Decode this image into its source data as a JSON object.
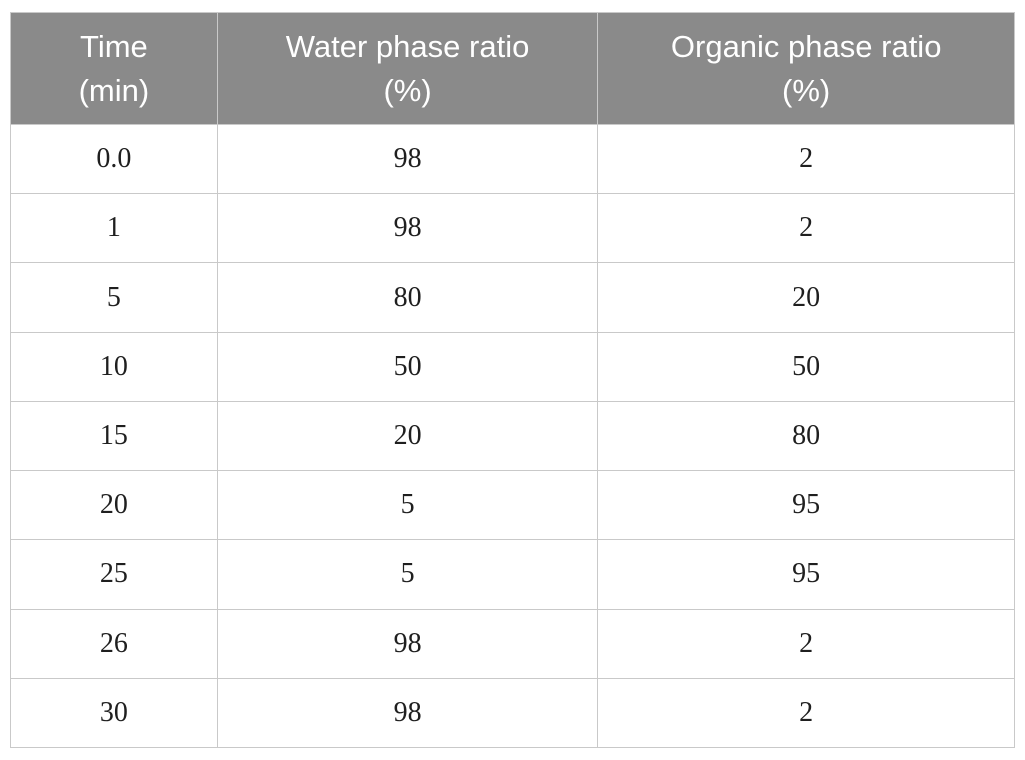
{
  "chart_data": {
    "type": "table",
    "title": "",
    "columns": [
      {
        "name": "Time",
        "unit": "(min)",
        "full_label": "Time (min)"
      },
      {
        "name": "Water phase ratio",
        "unit": "(%)",
        "full_label": "Water phase ratio (%)"
      },
      {
        "name": "Organic phase ratio",
        "unit": "(%)",
        "full_label": "Organic phase ratio (%)"
      }
    ],
    "rows": [
      [
        "0.0",
        "98",
        "2"
      ],
      [
        "1",
        "98",
        "2"
      ],
      [
        "5",
        "80",
        "20"
      ],
      [
        "10",
        "50",
        "50"
      ],
      [
        "15",
        "20",
        "80"
      ],
      [
        "20",
        "5",
        "95"
      ],
      [
        "25",
        "5",
        "95"
      ],
      [
        "26",
        "98",
        "2"
      ],
      [
        "30",
        "98",
        "2"
      ]
    ],
    "series_interpretation": {
      "x": [
        0.0,
        1,
        5,
        10,
        15,
        20,
        25,
        26,
        30
      ],
      "series": [
        {
          "name": "Water phase ratio (%)",
          "values": [
            98,
            98,
            80,
            50,
            20,
            5,
            5,
            98,
            98
          ]
        },
        {
          "name": "Organic phase ratio (%)",
          "values": [
            2,
            2,
            20,
            50,
            80,
            95,
            95,
            2,
            2
          ]
        }
      ]
    },
    "colors": {
      "header_bg": "#8a8a8a",
      "header_text": "#ffffff",
      "border": "#c9c9c9",
      "cell_text": "#1f1f1f",
      "page_bg": "#ffffff"
    }
  }
}
